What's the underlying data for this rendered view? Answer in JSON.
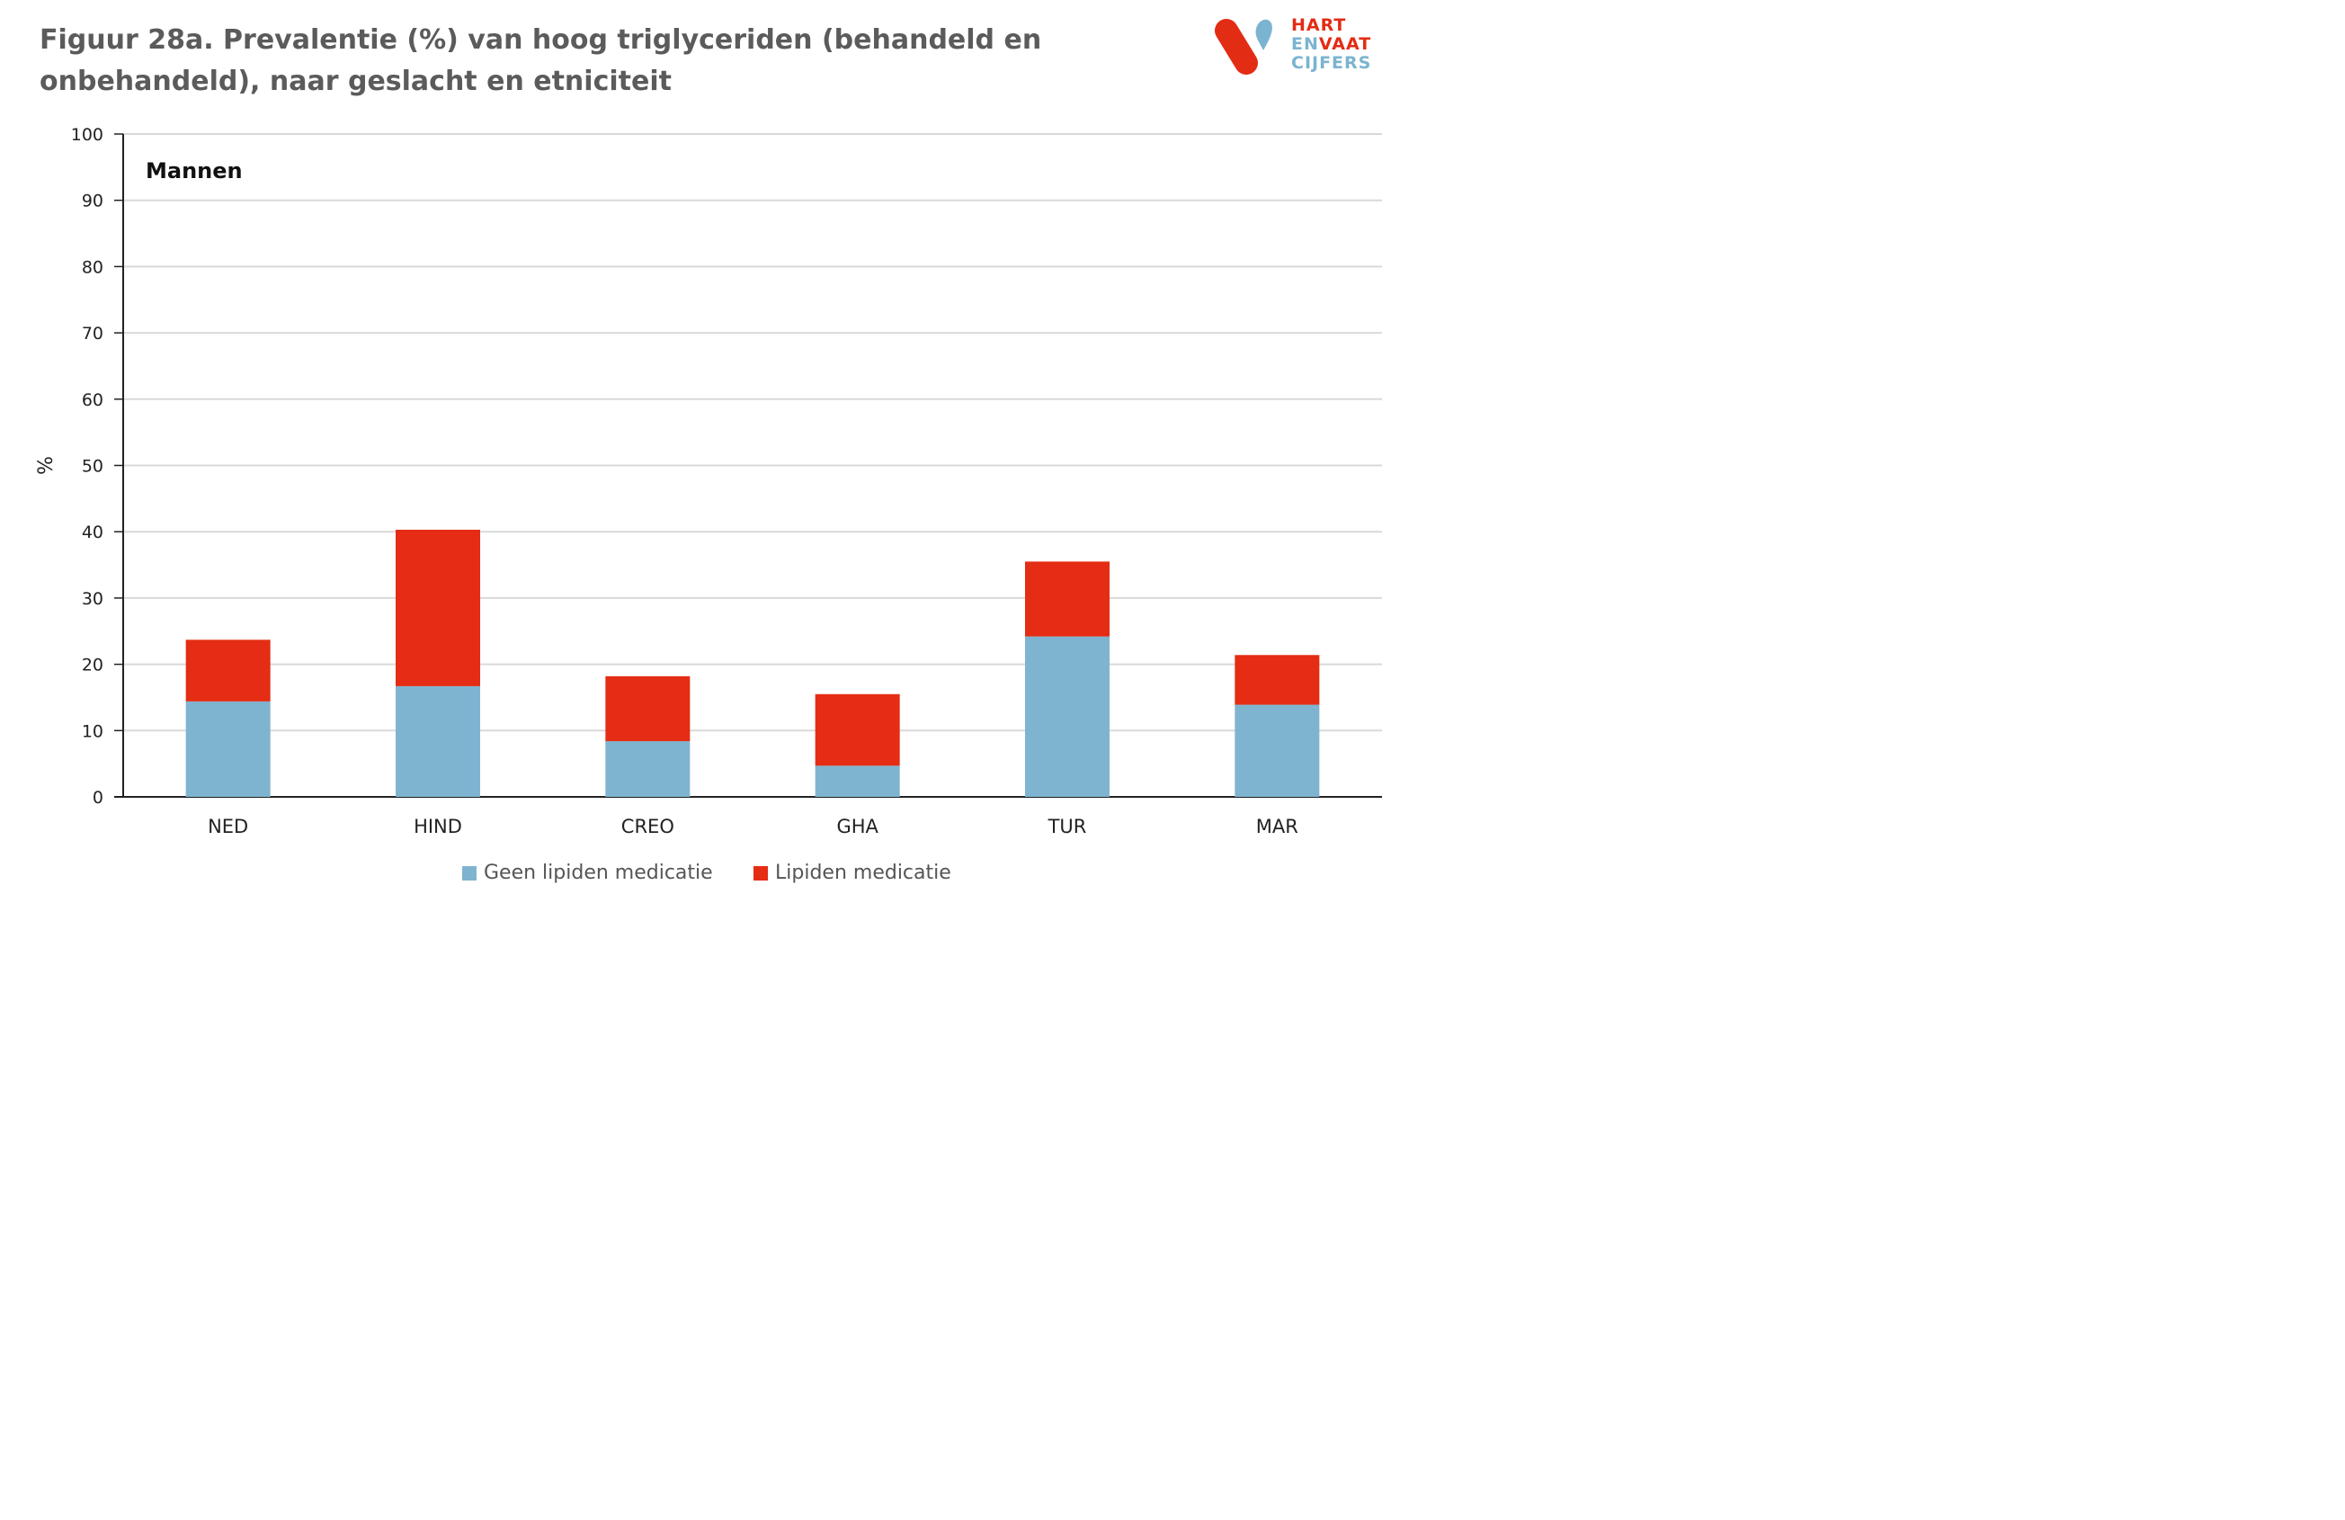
{
  "title": "Figuur 28a. Prevalentie (%) van hoog triglyceriden (behandeld en onbehandeld), naar geslacht en etniciteit",
  "logo": {
    "line1": "HART",
    "line2a": "EN",
    "line2b": "VAAT",
    "line3": "CIJFERS",
    "colors": {
      "red": "#e32c14",
      "blue": "#7ab4d0"
    }
  },
  "chart_data": {
    "type": "bar",
    "stacked": true,
    "panel_label": "Mannen",
    "categories": [
      "NED",
      "HIND",
      "CREO",
      "GHA",
      "TUR",
      "MAR"
    ],
    "series": [
      {
        "name": "Geen lipiden medicatie",
        "color": "#7fb4d0",
        "values": [
          14.4,
          16.7,
          8.4,
          4.7,
          24.2,
          13.9
        ]
      },
      {
        "name": "Lipiden medicatie",
        "color": "#e42d14",
        "values": [
          9.3,
          23.6,
          9.8,
          10.8,
          11.3,
          7.5
        ]
      }
    ],
    "ylabel": "%",
    "ylim": [
      0,
      100
    ],
    "yticks": [
      0,
      10,
      20,
      30,
      40,
      50,
      60,
      70,
      80,
      90,
      100
    ],
    "grid": true,
    "legend_position": "bottom"
  }
}
